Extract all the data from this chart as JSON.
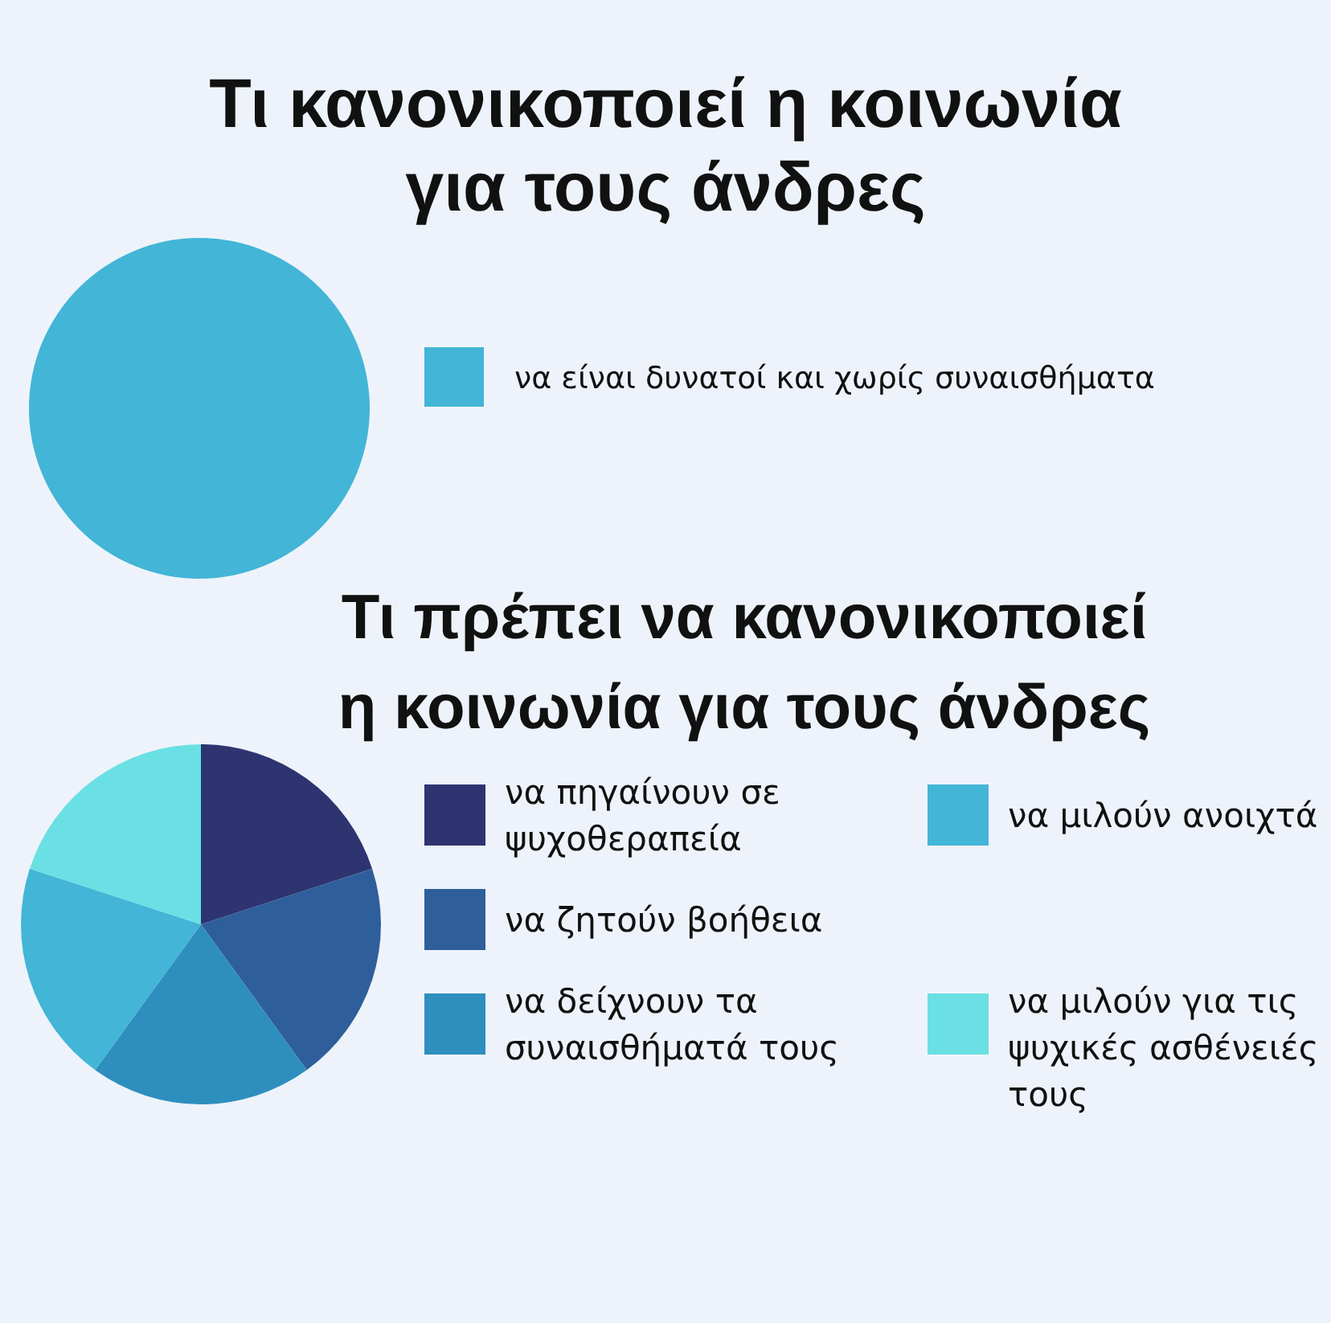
{
  "chart_data": [
    {
      "type": "pie",
      "title": "Τι κανονικοποιεί η κοινωνία για τους άνδρες",
      "categories": [
        "να είναι δυνατοί και χωρίς συναισθήματα"
      ],
      "values": [
        100
      ],
      "colors": [
        "#43b5d6"
      ],
      "legend": "right"
    },
    {
      "type": "pie",
      "title": "Τι πρέπει να κανονικοποιεί η κοινωνία για τους άνδρες",
      "categories": [
        "να πηγαίνουν σε ψυχοθεραπεία",
        "να ζητούν βοήθεια",
        "να δείχνουν τα συναισθήματά τους",
        "να μιλούν ανοιχτά",
        "να μιλούν για τις ψυχικές ασθένειές τους"
      ],
      "values": [
        20,
        20,
        20,
        20,
        20
      ],
      "colors": [
        "#2e3470",
        "#2e5f9a",
        "#2e8fbf",
        "#43b5d6",
        "#6ae0e4"
      ],
      "legend": "right"
    }
  ]
}
